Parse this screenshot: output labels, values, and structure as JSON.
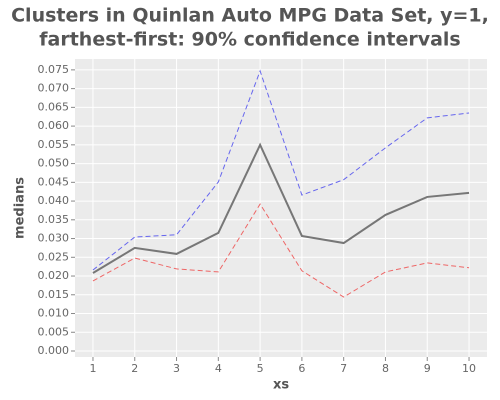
{
  "chart_data": {
    "type": "line",
    "title": [
      "Clusters in Quinlan Auto MPG Data Set, y=1,",
      "farthest-first: 90% confidence intervals"
    ],
    "xlabel": "xs",
    "ylabel": "medians",
    "x": [
      1,
      2,
      3,
      4,
      5,
      6,
      7,
      8,
      9,
      10
    ],
    "series": [
      {
        "color": "#6666ee",
        "dashed": true,
        "values": [
          0.0216,
          0.0304,
          0.031,
          0.0451,
          0.0747,
          0.0416,
          0.0457,
          0.0542,
          0.0622,
          0.0635
        ]
      },
      {
        "color": "#777777",
        "dashed": false,
        "values": [
          0.0208,
          0.0275,
          0.0259,
          0.0315,
          0.055,
          0.0307,
          0.0288,
          0.0363,
          0.0411,
          0.0422
        ]
      },
      {
        "color": "#ee6666",
        "dashed": true,
        "values": [
          0.0187,
          0.0248,
          0.0219,
          0.0211,
          0.0392,
          0.0214,
          0.0144,
          0.0211,
          0.0235,
          0.0222
        ]
      }
    ],
    "xlim": [
      0.57,
      10.43
    ],
    "xticks": [
      1,
      2,
      3,
      4,
      5,
      6,
      7,
      8,
      9,
      10
    ],
    "ylim": [
      -0.0016,
      0.0779
    ],
    "yticks": [
      {
        "value": 0,
        "label": "0.000"
      },
      {
        "value": 0.005,
        "label": "0.005"
      },
      {
        "value": 0.01,
        "label": "0.010"
      },
      {
        "value": 0.015,
        "label": "0.015"
      },
      {
        "value": 0.02,
        "label": "0.020"
      },
      {
        "value": 0.025,
        "label": "0.025"
      },
      {
        "value": 0.03,
        "label": "0.030"
      },
      {
        "value": 0.035,
        "label": "0.035"
      },
      {
        "value": 0.04,
        "label": "0.040"
      },
      {
        "value": 0.045,
        "label": "0.045"
      },
      {
        "value": 0.05,
        "label": "0.050"
      },
      {
        "value": 0.055,
        "label": "0.055"
      },
      {
        "value": 0.06,
        "label": "0.060"
      },
      {
        "value": 0.065,
        "label": "0.065"
      },
      {
        "value": 0.07,
        "label": "0.070"
      },
      {
        "value": 0.075,
        "label": "0.075"
      }
    ],
    "grid": true,
    "background": "#ebebeb"
  }
}
